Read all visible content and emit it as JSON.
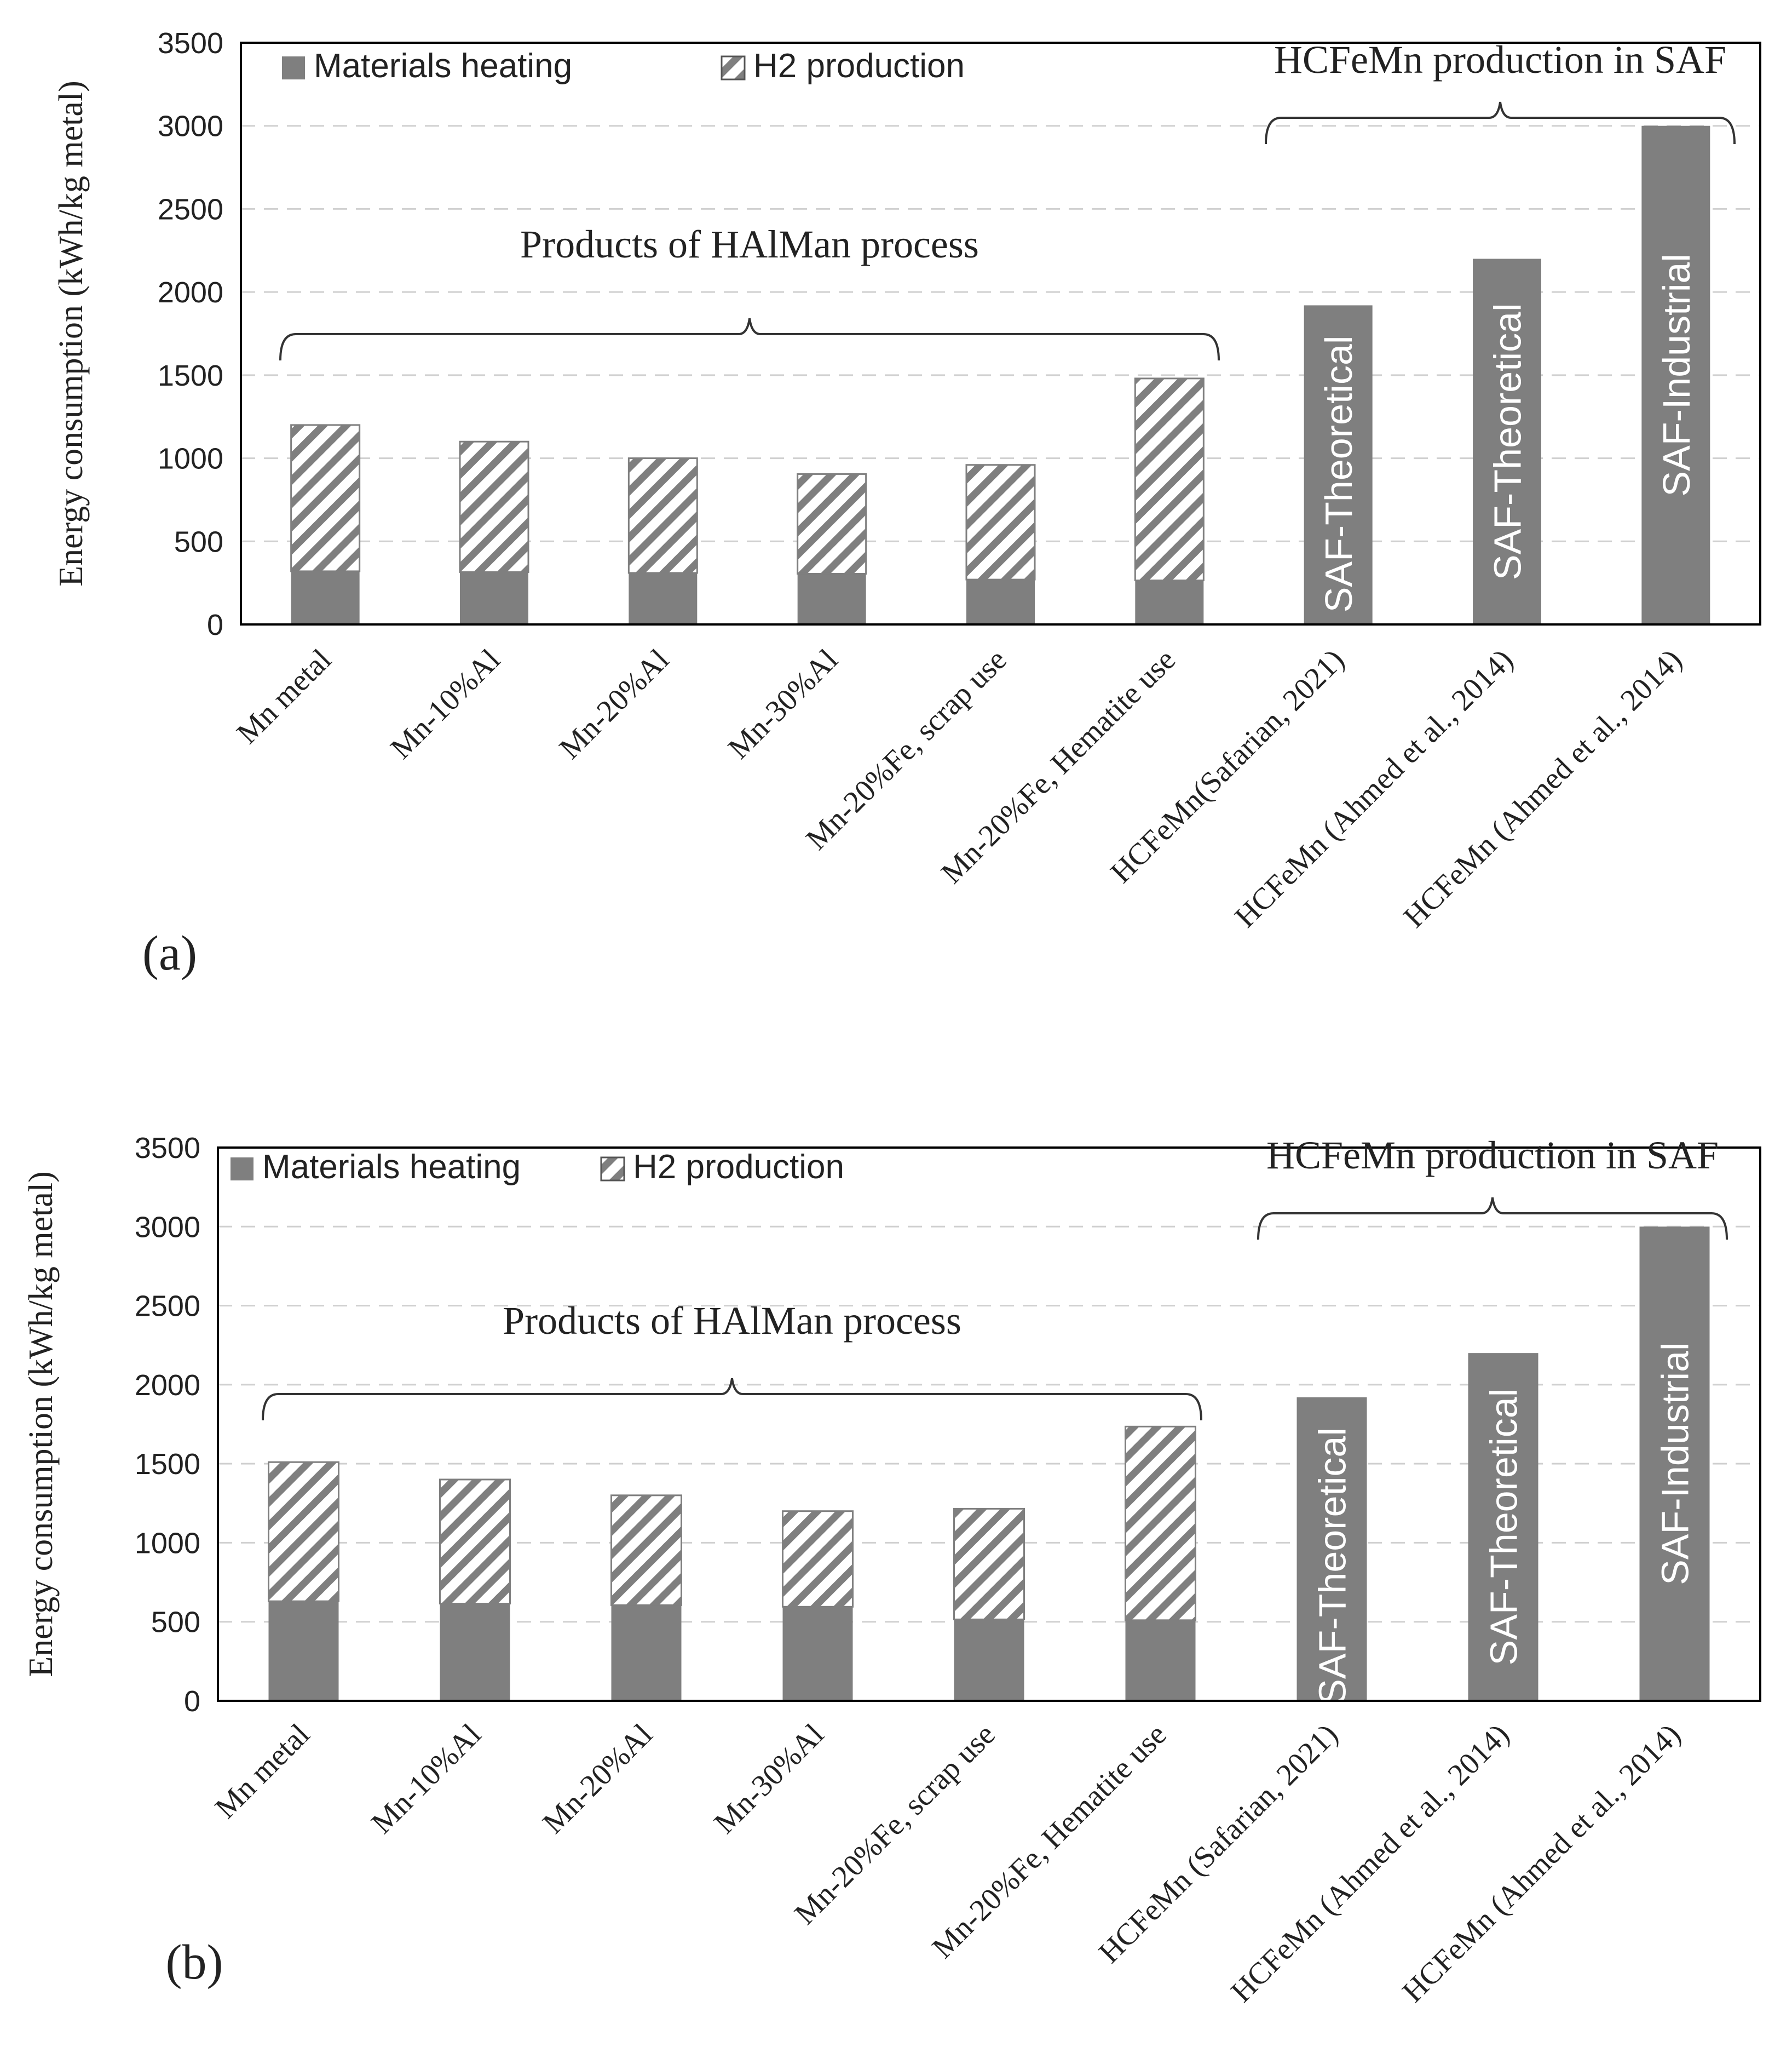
{
  "chart_data": [
    {
      "panel_label": "(a)",
      "type": "bar",
      "stacked": true,
      "ylabel": "Energy consumption (kWh/kg metal)",
      "ylim": [
        0,
        3500
      ],
      "yticks": [
        0,
        500,
        1000,
        1500,
        2000,
        2500,
        3000,
        3500
      ],
      "grid": "dashed horizontal",
      "categories": [
        "Mn metal",
        "Mn-10%Al",
        "Mn-20%Al",
        "Mn-30%Al",
        "Mn-20%Fe, scrap use",
        "Mn-20%Fe, Hematite use",
        "HCFeMn(Safarian, 2021)",
        "HCFeMn (Ahmed et al., 2014)",
        "HCFeMn (Ahmed et al., 2014)"
      ],
      "series": [
        {
          "name": "Materials heating",
          "pattern": "solid",
          "values": [
            320,
            315,
            310,
            305,
            270,
            265,
            1920,
            2200,
            3000
          ]
        },
        {
          "name": "H2 production",
          "pattern": "hatched",
          "values": [
            880,
            785,
            690,
            600,
            690,
            1215,
            0,
            0,
            0
          ]
        }
      ],
      "bar_labels": [
        "",
        "",
        "",
        "",
        "",
        "",
        "SAF-Theoretical",
        "SAF-Theoretical",
        "SAF-Industrial"
      ],
      "legend": [
        {
          "label": "Materials heating",
          "pattern": "solid"
        },
        {
          "label": "H2 production",
          "pattern": "hatched"
        }
      ],
      "annotations": [
        {
          "text": "Products of HAlMan process",
          "from_index": 0,
          "to_index": 5,
          "at_value": 1600
        },
        {
          "text": "HCFeMn production in SAF",
          "from_index": 6,
          "to_index": 8,
          "at_value": 3000
        }
      ]
    },
    {
      "panel_label": "(b)",
      "type": "bar",
      "stacked": true,
      "ylabel": "Energy consumption (kWh/kg metal)",
      "ylim": [
        0,
        3500
      ],
      "yticks": [
        0,
        500,
        1000,
        1500,
        2000,
        2500,
        3000,
        3500
      ],
      "grid": "dashed horizontal",
      "categories": [
        "Mn metal",
        "Mn-10%Al",
        "Mn-20%Al",
        "Mn-30%Al",
        "Mn-20%Fe, scrap use",
        "Mn-20%Fe, Hematite use",
        "HCFeMn (Safarian, 2021)",
        "HCFeMn (Ahmed et al., 2014)",
        "HCFeMn (Ahmed et al., 2014)"
      ],
      "series": [
        {
          "name": "Materials heating",
          "pattern": "solid",
          "values": [
            630,
            615,
            605,
            595,
            515,
            510,
            1920,
            2200,
            3000
          ]
        },
        {
          "name": "H2 production",
          "pattern": "hatched",
          "values": [
            880,
            785,
            695,
            605,
            700,
            1225,
            0,
            0,
            0
          ]
        }
      ],
      "bar_labels": [
        "",
        "",
        "",
        "",
        "",
        "",
        "SAF-Theoretical",
        "SAF-Theoretical",
        "SAF-Industrial"
      ],
      "legend": [
        {
          "label": "Materials heating",
          "pattern": "solid"
        },
        {
          "label": "H2 production",
          "pattern": "hatched"
        }
      ],
      "annotations": [
        {
          "text": "Products of HAlMan process",
          "from_index": 0,
          "to_index": 5,
          "at_value": 1960
        },
        {
          "text": "HCFeMn production in SAF",
          "from_index": 6,
          "to_index": 8,
          "at_value": 3000
        }
      ]
    }
  ],
  "colors": {
    "bar": "#7f7f7f",
    "hatch_line": "#7f7f7f",
    "axis": "#000000",
    "grid": "#d0d0d0",
    "bar_text": "#ffffff",
    "text": "#222222"
  }
}
